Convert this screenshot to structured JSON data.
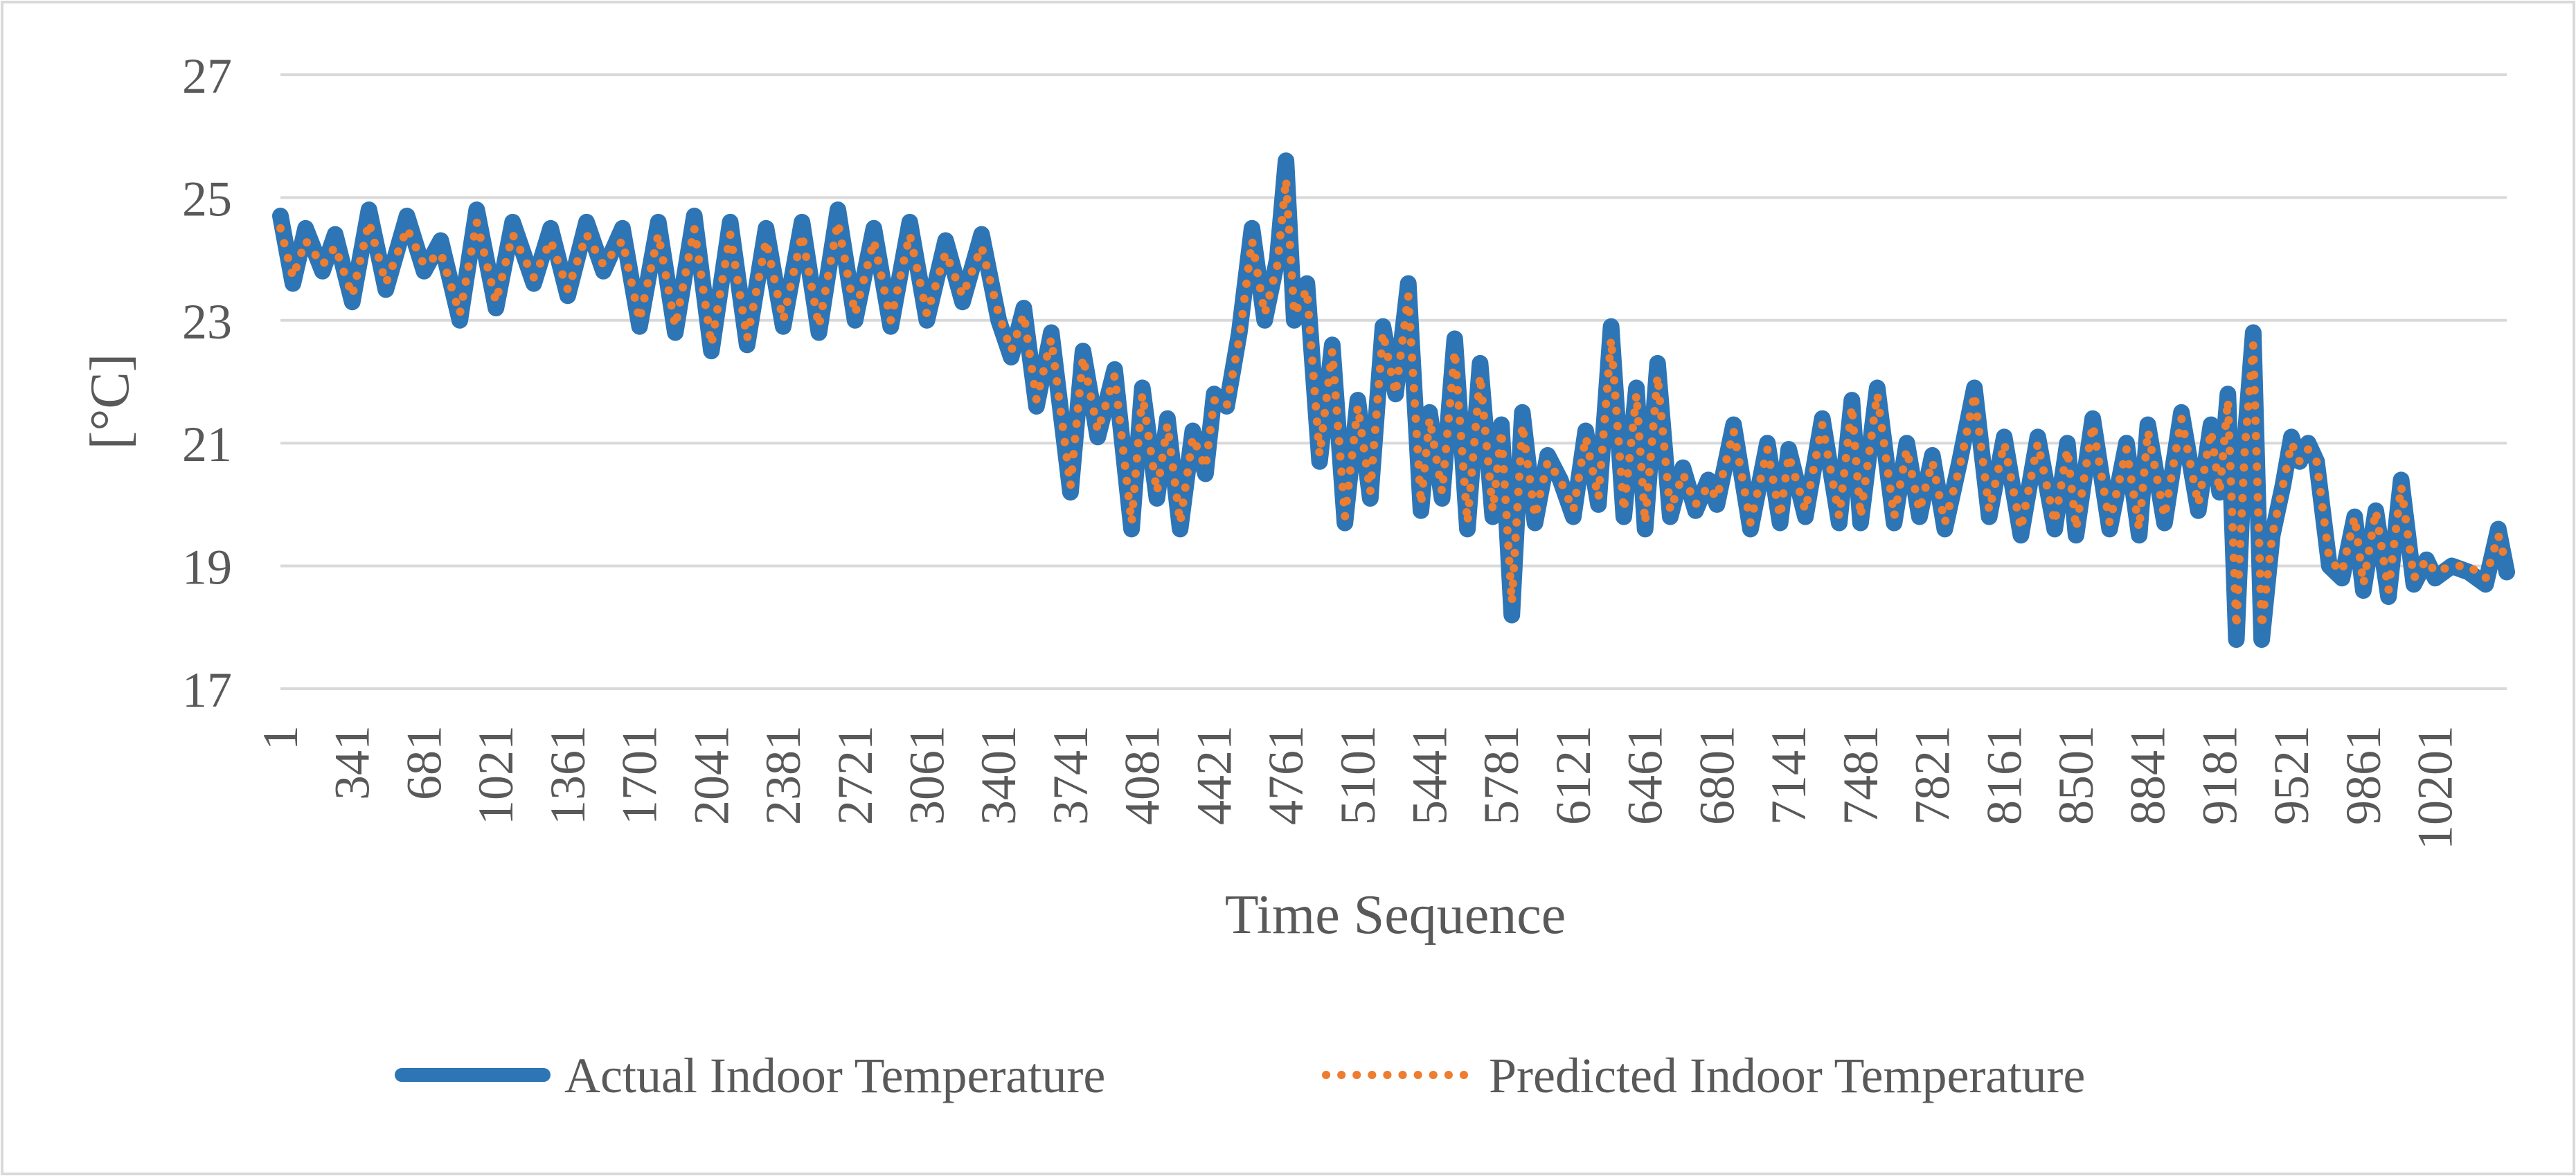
{
  "chart_data": {
    "type": "line",
    "title": "",
    "xlabel": "Time Sequence",
    "ylabel": "[°C]",
    "ylim": [
      17,
      27
    ],
    "yticks": [
      17,
      19,
      21,
      23,
      25,
      27
    ],
    "xlim": [
      1,
      10540
    ],
    "xticks": [
      "1",
      "341",
      "681",
      "1021",
      "1361",
      "1701",
      "2041",
      "2381",
      "2721",
      "3061",
      "3401",
      "3741",
      "4081",
      "4421",
      "4761",
      "5101",
      "5441",
      "5781",
      "6121",
      "6461",
      "6801",
      "7141",
      "7481",
      "7821",
      "8161",
      "8501",
      "8841",
      "9181",
      "9521",
      "9861",
      "10201"
    ],
    "grid": true,
    "legend_position": "bottom",
    "colors": {
      "actual": "#2E75B6",
      "predicted": "#ED7D31",
      "grid": "#D9D9D9",
      "frame": "#D9D9D9",
      "text": "#595959"
    },
    "series": [
      {
        "name": "Actual Indoor Temperature",
        "style": "solid",
        "x": [
          1,
          60,
          120,
          200,
          260,
          341,
          420,
          500,
          600,
          681,
          760,
          850,
          930,
          1021,
          1100,
          1200,
          1280,
          1361,
          1450,
          1530,
          1620,
          1701,
          1790,
          1870,
          1960,
          2041,
          2130,
          2210,
          2300,
          2381,
          2470,
          2550,
          2640,
          2721,
          2810,
          2890,
          2980,
          3061,
          3150,
          3230,
          3320,
          3401,
          3460,
          3520,
          3580,
          3650,
          3741,
          3800,
          3870,
          3950,
          4030,
          4081,
          4150,
          4200,
          4260,
          4320,
          4380,
          4421,
          4480,
          4540,
          4600,
          4660,
          4720,
          4761,
          4800,
          4860,
          4920,
          4980,
          5040,
          5101,
          5160,
          5220,
          5280,
          5340,
          5400,
          5441,
          5500,
          5560,
          5620,
          5680,
          5740,
          5781,
          5830,
          5880,
          5940,
          6000,
          6060,
          6121,
          6180,
          6240,
          6300,
          6360,
          6420,
          6461,
          6520,
          6580,
          6640,
          6700,
          6760,
          6801,
          6880,
          6960,
          7040,
          7100,
          7141,
          7220,
          7300,
          7380,
          7440,
          7481,
          7560,
          7640,
          7700,
          7760,
          7821,
          7880,
          7950,
          8020,
          8090,
          8161,
          8240,
          8320,
          8400,
          8460,
          8501,
          8580,
          8660,
          8740,
          8800,
          8841,
          8920,
          9000,
          9080,
          9140,
          9181,
          9220,
          9260,
          9300,
          9340,
          9380,
          9430,
          9480,
          9521,
          9560,
          9600,
          9640,
          9700,
          9760,
          9820,
          9861,
          9920,
          9980,
          10040,
          10100,
          10160,
          10201,
          10280,
          10360,
          10440,
          10500,
          10540
        ],
        "values": [
          24.7,
          23.6,
          24.5,
          23.8,
          24.4,
          23.3,
          24.8,
          23.5,
          24.7,
          23.8,
          24.3,
          23.0,
          24.8,
          23.2,
          24.6,
          23.6,
          24.5,
          23.4,
          24.6,
          23.8,
          24.5,
          22.9,
          24.6,
          22.8,
          24.7,
          22.5,
          24.6,
          22.6,
          24.5,
          22.9,
          24.6,
          22.8,
          24.8,
          23.0,
          24.5,
          22.9,
          24.6,
          23.0,
          24.3,
          23.3,
          24.4,
          23.0,
          22.4,
          23.2,
          21.6,
          22.8,
          20.2,
          22.5,
          21.1,
          22.2,
          19.6,
          21.9,
          20.1,
          21.4,
          19.6,
          21.2,
          20.5,
          21.8,
          21.6,
          22.8,
          24.5,
          23.0,
          24.0,
          25.6,
          23.0,
          23.6,
          20.7,
          22.6,
          19.7,
          21.7,
          20.1,
          22.9,
          21.8,
          23.6,
          19.9,
          21.5,
          20.1,
          22.7,
          19.6,
          22.3,
          19.8,
          21.3,
          18.2,
          21.5,
          19.7,
          20.8,
          20.4,
          19.8,
          21.2,
          20.0,
          22.9,
          19.8,
          21.9,
          19.6,
          22.3,
          19.8,
          20.6,
          19.9,
          20.4,
          20.0,
          21.3,
          19.6,
          21.0,
          19.7,
          20.9,
          19.8,
          21.4,
          19.7,
          21.7,
          19.7,
          21.9,
          19.7,
          21.0,
          19.8,
          20.8,
          19.6,
          20.7,
          21.9,
          19.8,
          21.1,
          19.5,
          21.1,
          19.6,
          21.0,
          19.5,
          21.4,
          19.6,
          21.0,
          19.5,
          21.3,
          19.7,
          21.5,
          19.9,
          21.3,
          20.2,
          21.8,
          17.8,
          21.0,
          22.8,
          17.8,
          19.5,
          20.3,
          21.1,
          20.7,
          21.0,
          20.7,
          19.0,
          18.8,
          19.8,
          18.6,
          19.9,
          18.5,
          20.4,
          18.7,
          19.1,
          18.8,
          19.0,
          18.9,
          18.7,
          19.6,
          18.9
        ]
      },
      {
        "name": "Predicted Indoor Temperature",
        "style": "dotted",
        "x": [
          1,
          60,
          120,
          200,
          260,
          341,
          420,
          500,
          600,
          681,
          760,
          850,
          930,
          1021,
          1100,
          1200,
          1280,
          1361,
          1450,
          1530,
          1620,
          1701,
          1790,
          1870,
          1960,
          2041,
          2130,
          2210,
          2300,
          2381,
          2470,
          2550,
          2640,
          2721,
          2810,
          2890,
          2980,
          3061,
          3150,
          3230,
          3320,
          3401,
          3460,
          3520,
          3580,
          3650,
          3741,
          3800,
          3870,
          3950,
          4030,
          4081,
          4150,
          4200,
          4260,
          4320,
          4380,
          4421,
          4480,
          4540,
          4600,
          4660,
          4720,
          4761,
          4800,
          4860,
          4920,
          4980,
          5040,
          5101,
          5160,
          5220,
          5280,
          5340,
          5400,
          5441,
          5500,
          5560,
          5620,
          5680,
          5740,
          5781,
          5830,
          5880,
          5940,
          6000,
          6060,
          6121,
          6180,
          6240,
          6300,
          6360,
          6420,
          6461,
          6520,
          6580,
          6640,
          6700,
          6760,
          6801,
          6880,
          6960,
          7040,
          7100,
          7141,
          7220,
          7300,
          7380,
          7440,
          7481,
          7560,
          7640,
          7700,
          7760,
          7821,
          7880,
          7950,
          8020,
          8090,
          8161,
          8240,
          8320,
          8400,
          8460,
          8501,
          8580,
          8660,
          8740,
          8800,
          8841,
          8920,
          9000,
          9080,
          9140,
          9181,
          9220,
          9260,
          9300,
          9340,
          9380,
          9430,
          9480,
          9521,
          9560,
          9600,
          9640,
          9700,
          9760,
          9820,
          9861,
          9920,
          9980,
          10040,
          10100,
          10160,
          10201,
          10280,
          10360,
          10440,
          10500,
          10540
        ],
        "values": [
          24.5,
          23.7,
          24.3,
          23.9,
          24.2,
          23.4,
          24.6,
          23.6,
          24.5,
          23.9,
          24.1,
          23.1,
          24.6,
          23.3,
          24.4,
          23.7,
          24.3,
          23.5,
          24.4,
          23.9,
          24.3,
          23.0,
          24.4,
          22.9,
          24.5,
          22.6,
          24.4,
          22.7,
          24.3,
          23.0,
          24.4,
          22.9,
          24.6,
          23.1,
          24.3,
          23.0,
          24.4,
          23.1,
          24.1,
          23.4,
          24.2,
          23.1,
          22.5,
          23.1,
          21.7,
          22.7,
          20.3,
          22.4,
          21.2,
          22.1,
          19.7,
          21.8,
          20.2,
          21.3,
          19.7,
          21.1,
          20.6,
          21.7,
          21.6,
          22.7,
          24.3,
          23.1,
          23.9,
          25.3,
          23.1,
          23.5,
          20.8,
          22.5,
          19.8,
          21.6,
          20.2,
          22.8,
          21.8,
          23.4,
          20.0,
          21.4,
          20.2,
          22.5,
          19.7,
          22.1,
          19.9,
          21.2,
          18.4,
          21.3,
          19.8,
          20.7,
          20.4,
          19.9,
          21.1,
          20.1,
          22.7,
          19.9,
          21.8,
          19.7,
          22.1,
          19.9,
          20.5,
          20.0,
          20.3,
          20.1,
          21.2,
          19.7,
          20.9,
          19.8,
          20.8,
          19.9,
          21.3,
          19.8,
          21.6,
          19.8,
          21.8,
          19.8,
          20.9,
          19.9,
          20.7,
          19.7,
          20.6,
          21.8,
          19.9,
          21.0,
          19.6,
          21.0,
          19.7,
          20.9,
          19.6,
          21.3,
          19.7,
          20.9,
          19.6,
          21.2,
          19.8,
          21.4,
          20.0,
          21.2,
          20.2,
          21.7,
          18.0,
          20.9,
          22.6,
          18.0,
          19.5,
          20.3,
          21.0,
          20.7,
          20.9,
          20.7,
          19.1,
          18.9,
          19.8,
          18.7,
          19.9,
          18.6,
          20.3,
          18.8,
          19.1,
          18.9,
          19.0,
          19.0,
          18.8,
          19.5,
          19.0
        ]
      }
    ]
  }
}
